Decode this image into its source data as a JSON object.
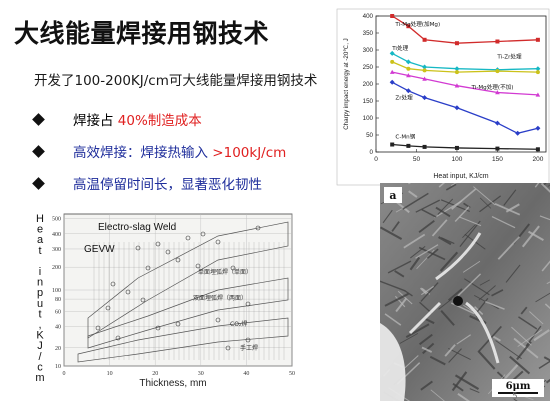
{
  "slide": {
    "title": "大线能量焊接用钢技术",
    "subtitle": "开发了100-200KJ/cm可大线能量焊接用钢技术",
    "bullets": [
      {
        "plain": "焊接占 ",
        "accent": "40%制造成本"
      },
      {
        "plain": "高效焊接：焊接热输入 ",
        "accent": ">100kJ/cm"
      },
      {
        "plain": "高温停留时间长，显著恶化韧性",
        "accent": ""
      }
    ],
    "page_number": "5"
  },
  "colors": {
    "accent": "#e02020",
    "bullet_blue": "#1e2d9b"
  },
  "chart_data": [
    {
      "type": "line",
      "xlabel": "Heat input, KJ/cm",
      "ylabel": "Charpy impact energy at -20℃,  J",
      "x_ticks": [
        "0",
        "50",
        "100",
        "150",
        "200"
      ],
      "y_ticks": [
        "0",
        "50",
        "100",
        "150",
        "200",
        "250",
        "300",
        "350",
        "400"
      ],
      "xlim": [
        0,
        210
      ],
      "ylim": [
        0,
        400
      ],
      "series": [
        {
          "name": "Ti-Mg处理(加Mg)",
          "color": "#d12b2b",
          "marker": "square",
          "x": [
            20,
            40,
            60,
            100,
            150,
            200
          ],
          "y": [
            400,
            370,
            330,
            320,
            325,
            330
          ]
        },
        {
          "name": "Ti-Zr处理",
          "color": "#16b8c4",
          "marker": "diamond",
          "x": [
            20,
            40,
            60,
            100,
            150,
            200
          ],
          "y": [
            290,
            265,
            250,
            245,
            242,
            245
          ]
        },
        {
          "name": "Ti处理",
          "color": "#ccc21a",
          "marker": "circle",
          "x": [
            20,
            40,
            60,
            100,
            150,
            200
          ],
          "y": [
            265,
            245,
            240,
            235,
            238,
            235
          ]
        },
        {
          "name": "Ti-Mg处理(不加)",
          "color": "#d23ad2",
          "marker": "triangle",
          "x": [
            20,
            40,
            60,
            100,
            150,
            200
          ],
          "y": [
            235,
            225,
            215,
            195,
            175,
            168
          ]
        },
        {
          "name": "Zr处理",
          "color": "#2a3ec8",
          "marker": "diamond",
          "x": [
            20,
            40,
            60,
            100,
            150,
            175,
            200
          ],
          "y": [
            205,
            180,
            160,
            130,
            85,
            55,
            70
          ]
        },
        {
          "name": "C-Mn钢",
          "color": "#222222",
          "marker": "square",
          "x": [
            20,
            40,
            60,
            100,
            150,
            200
          ],
          "y": [
            22,
            18,
            15,
            12,
            10,
            8
          ]
        }
      ]
    },
    {
      "type": "scatter",
      "ylabel_vertical": [
        "H",
        "e",
        "a",
        "t",
        " ",
        "i",
        "n",
        "p",
        "u",
        "t",
        ",",
        "K",
        "J",
        "/",
        "c",
        "m"
      ],
      "xlabel": "Thickness, mm",
      "x_ticks": [
        "0",
        "10",
        "20",
        "30",
        "40",
        "50"
      ],
      "y_ticks": [
        "500",
        "400",
        "300",
        "200",
        "100",
        "80",
        "60",
        "40",
        "20",
        "10"
      ],
      "annotations": [
        "Electro-slag Weld",
        "GEVW",
        "单面埋弧焊（单面）",
        "双面埋弧焊（两面）",
        "CO₂焊",
        "手工焊"
      ]
    }
  ],
  "image": {
    "label": "a",
    "scale": "6μm"
  }
}
